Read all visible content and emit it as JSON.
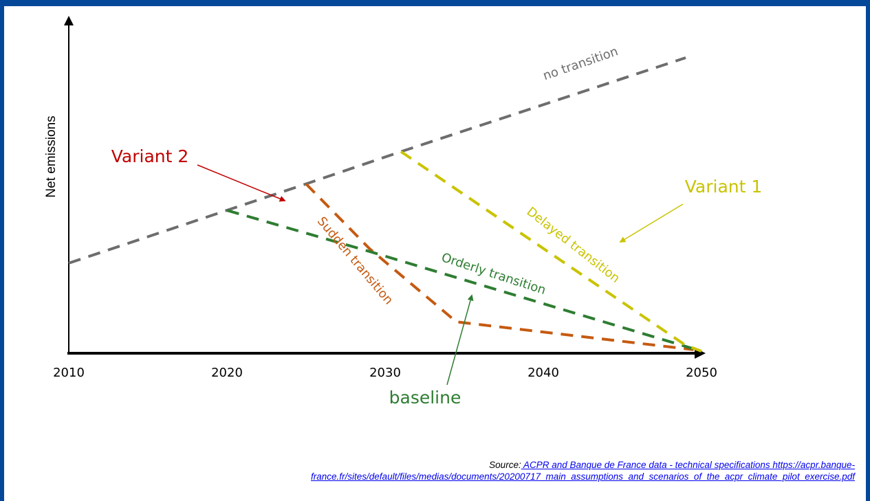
{
  "chart_data": {
    "type": "line",
    "title": "",
    "xlabel": "",
    "ylabel": "Net emissions",
    "x_ticks": [
      2010,
      2020,
      2030,
      2040,
      2050
    ],
    "xlim": [
      2010,
      2050
    ],
    "ylim": [
      0,
      100
    ],
    "grid": false,
    "legend": "none",
    "series": [
      {
        "key": "no_transition",
        "name": "no transition",
        "color": "#6d6d6d",
        "points": [
          [
            2010,
            30
          ],
          [
            2020,
            48
          ],
          [
            2025,
            57
          ],
          [
            2031,
            68
          ],
          [
            2049,
            100
          ]
        ]
      },
      {
        "key": "sudden",
        "name": "Sudden transition",
        "color": "#c55a11",
        "points": [
          [
            2025,
            57
          ],
          [
            2029,
            35
          ],
          [
            2034.5,
            10
          ],
          [
            2049.5,
            0.5
          ]
        ]
      },
      {
        "key": "orderly",
        "name": "Orderly transition",
        "color": "#2e7d32",
        "points": [
          [
            2020,
            48
          ],
          [
            2029,
            34
          ],
          [
            2050,
            0
          ]
        ]
      },
      {
        "key": "delayed",
        "name": "Delayed transition",
        "color": "#c9c300",
        "points": [
          [
            2031,
            68
          ],
          [
            2049,
            2
          ],
          [
            2050,
            0
          ]
        ]
      }
    ],
    "annotations": {
      "variant2": "Variant 2",
      "variant1": "Variant 1",
      "baseline": "baseline"
    }
  },
  "source": {
    "prefix": "Source:",
    "link_text": " ACPR and Banque de France data - technical specifications https://acpr.banque-france.fr/sites/default/files/medias/documents/20200717_main_assumptions_and_scenarios_of_the_acpr_climate_pilot_exercise.pdf"
  }
}
